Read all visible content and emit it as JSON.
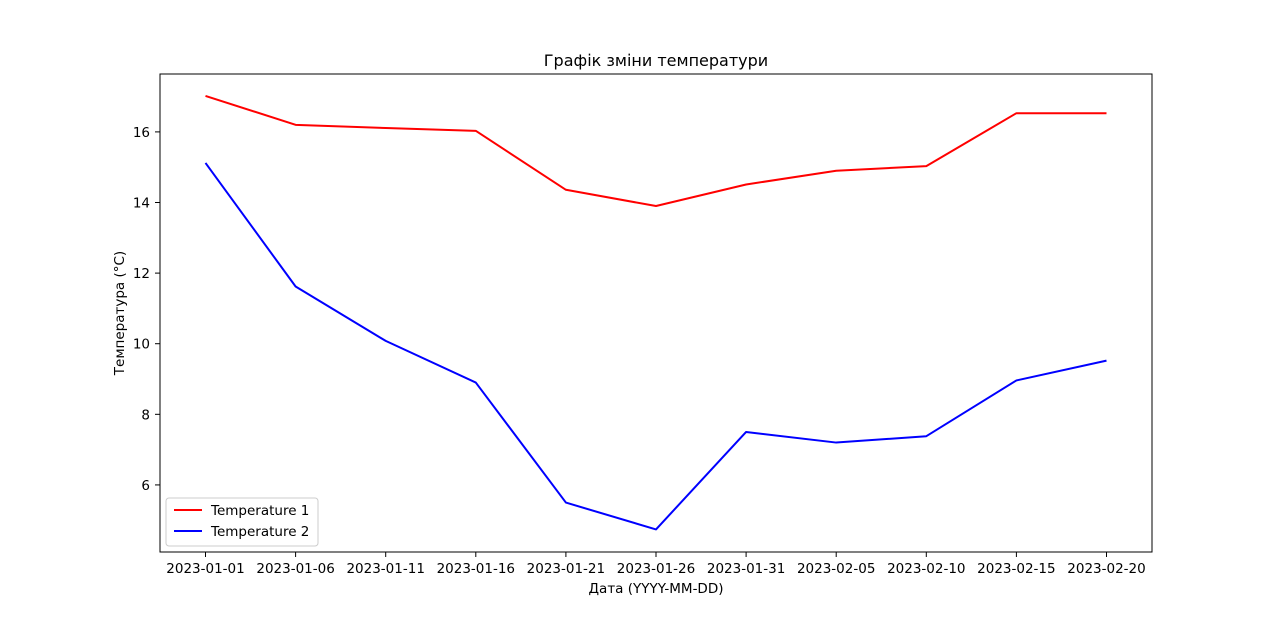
{
  "chart_data": {
    "type": "line",
    "title": "Графік зміни температури",
    "xlabel": "Дата (YYYY-MM-DD)",
    "ylabel": "Температура (°C)",
    "x": [
      "2023-01-01",
      "2023-01-06",
      "2023-01-11",
      "2023-01-16",
      "2023-01-21",
      "2023-01-26",
      "2023-01-31",
      "2023-02-05",
      "2023-02-10",
      "2023-02-15",
      "2023-02-20"
    ],
    "x_ticks": [
      "2023-01-01",
      "2023-01-06",
      "2023-01-11",
      "2023-01-16",
      "2023-01-21",
      "2023-01-26",
      "2023-01-31",
      "2023-02-05",
      "2023-02-10",
      "2023-02-15",
      "2023-02-20"
    ],
    "y_ticks": [
      6,
      8,
      10,
      12,
      14,
      16
    ],
    "ylim": [
      4.1,
      17.64
    ],
    "grid": false,
    "legend_position": "lower-left",
    "series": [
      {
        "name": "Temperature 1",
        "color": "#ff0000",
        "values": [
          17.02,
          16.2,
          16.11,
          16.03,
          14.36,
          13.9,
          14.51,
          14.9,
          15.03,
          16.53,
          16.53
        ]
      },
      {
        "name": "Temperature 2",
        "color": "#0000ff",
        "values": [
          15.12,
          11.62,
          10.08,
          8.9,
          5.5,
          4.74,
          7.5,
          7.2,
          7.38,
          8.96,
          9.52
        ]
      }
    ]
  }
}
